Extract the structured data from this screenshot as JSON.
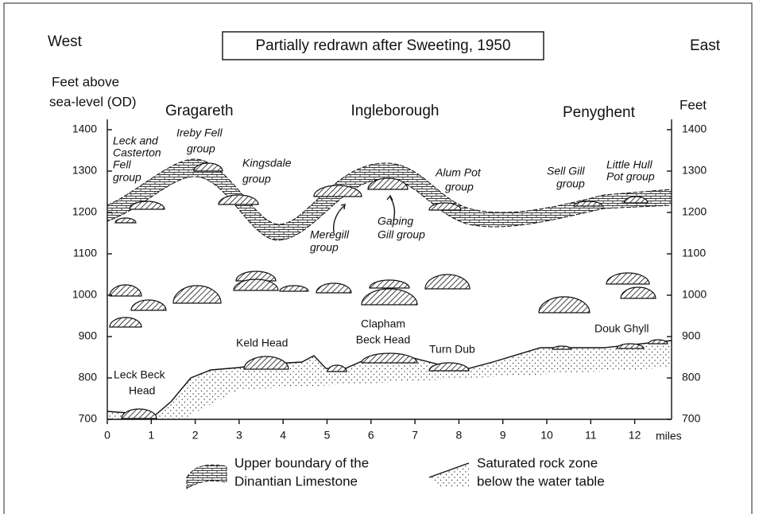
{
  "header": {
    "left": "West",
    "title": "Partially redrawn after Sweeting, 1950",
    "right": "East"
  },
  "axes": {
    "left_title": [
      "Feet above",
      "sea-level (OD)"
    ],
    "right_title": "Feet",
    "y_ticks": [
      700,
      800,
      900,
      1000,
      1100,
      1200,
      1300,
      1400
    ],
    "x_ticks": [
      0,
      1,
      2,
      3,
      4,
      5,
      6,
      7,
      8,
      9,
      10,
      11,
      12
    ],
    "x_unit": "miles"
  },
  "peaks": [
    "Gragareth",
    "Ingleborough",
    "Penyghent"
  ],
  "cave_groups": [
    [
      "Leck and",
      "Casterton",
      "Fell",
      "group"
    ],
    [
      "Ireby Fell",
      "group"
    ],
    [
      "Kingsdale",
      "group"
    ],
    [
      "Meregill",
      "group"
    ],
    [
      "Gaping",
      "Gill group"
    ],
    [
      "Alum Pot",
      "group"
    ],
    [
      "Sell Gill",
      "group"
    ],
    [
      "Little Hull",
      "Pot group"
    ]
  ],
  "springs": [
    [
      "Leck Beck",
      "Head"
    ],
    [
      "Keld Head"
    ],
    [
      "Clapham",
      "Beck Head"
    ],
    [
      "Turn Dub"
    ],
    [
      "Douk Ghyll"
    ]
  ],
  "legend": [
    [
      "Upper boundary of the",
      "Dinantian Limestone"
    ],
    [
      "Saturated rock zone",
      "below the water table"
    ]
  ]
}
